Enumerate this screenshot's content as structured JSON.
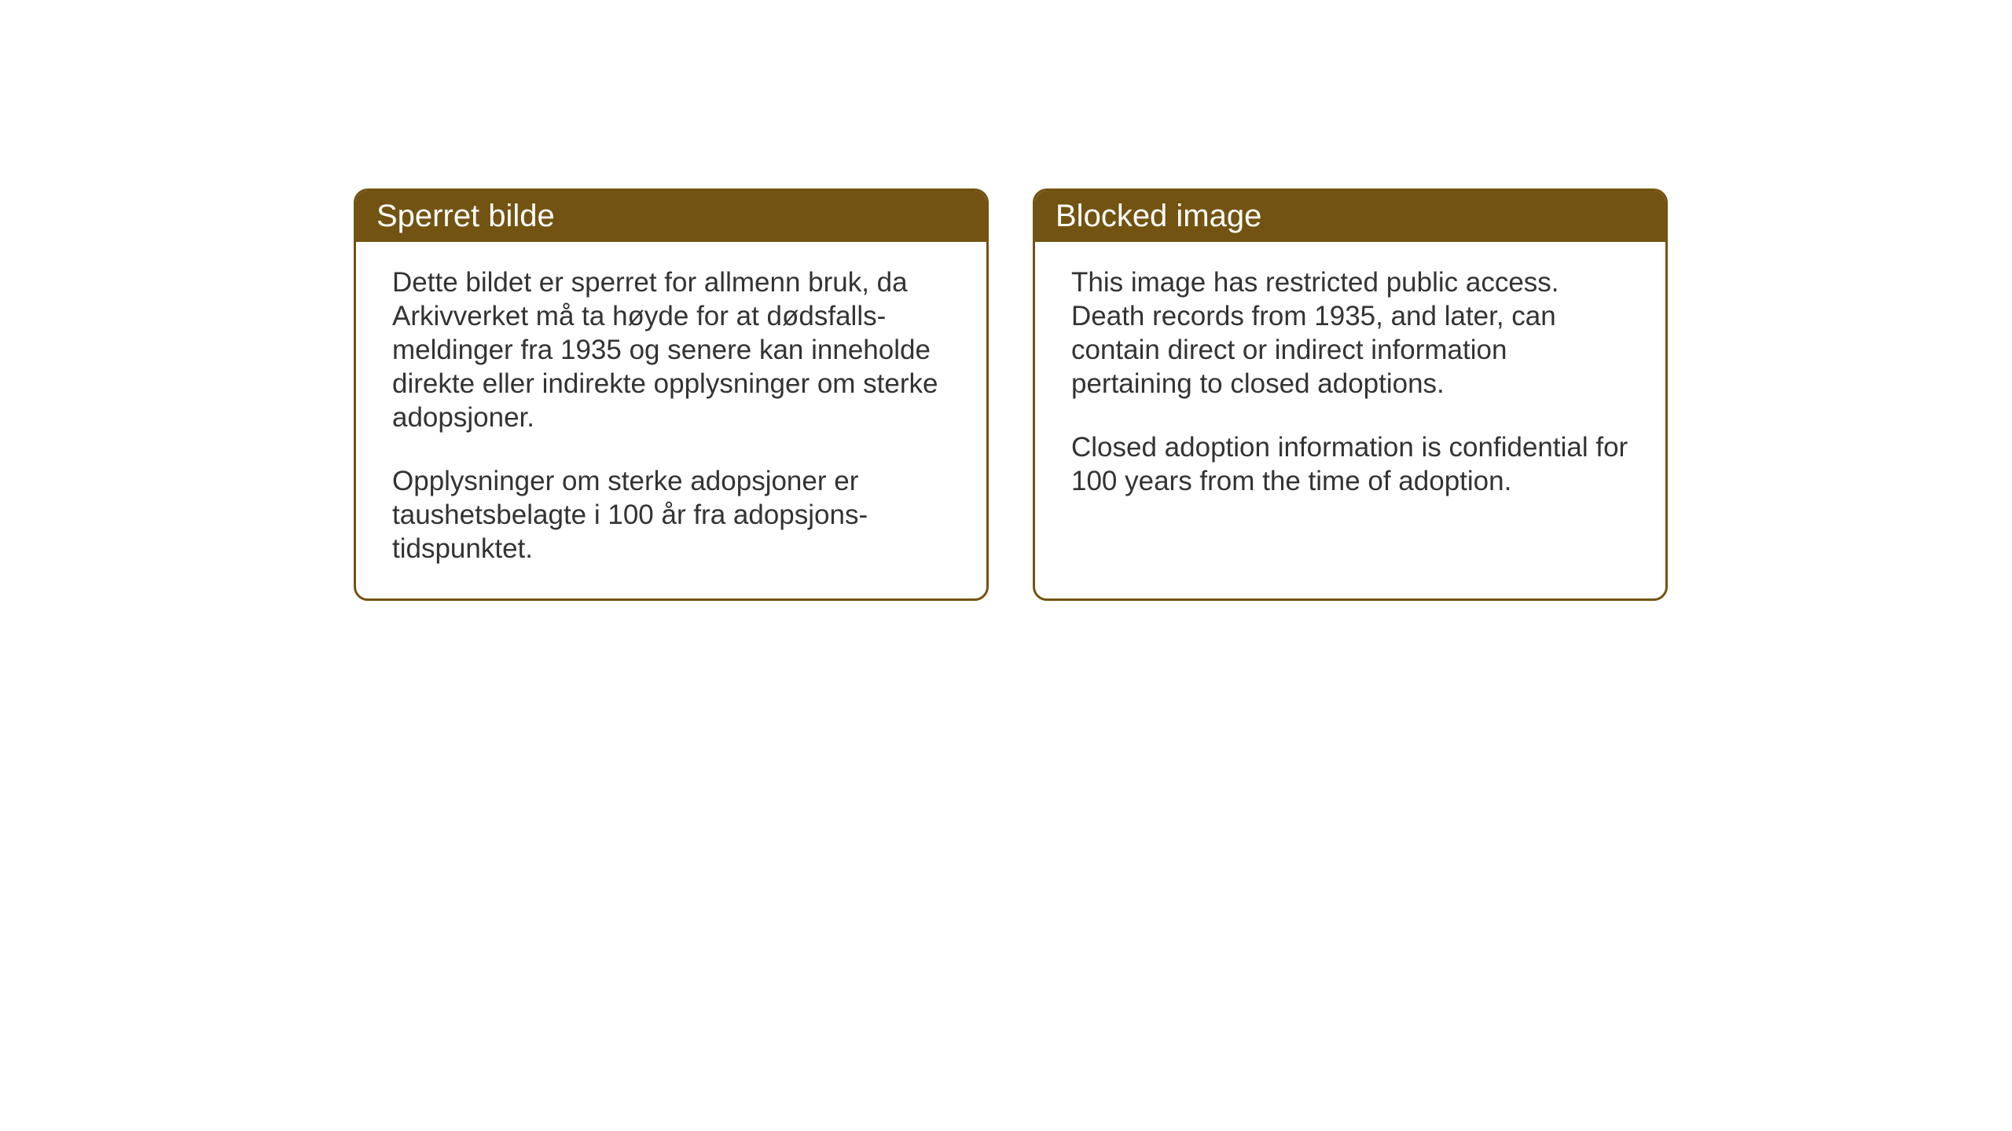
{
  "cards": {
    "left": {
      "title": "Sperret bilde",
      "paragraph1": "Dette bildet er sperret for allmenn bruk, da Arkivverket må ta høyde for at dødsfalls-meldinger fra 1935 og senere kan inneholde direkte eller indirekte opplysninger om sterke adopsjoner.",
      "paragraph2": "Opplysninger om sterke adopsjoner er taushetsbelagte i 100 år fra adopsjons-tidspunktet."
    },
    "right": {
      "title": "Blocked image",
      "paragraph1": "This image has restricted public access. Death records from 1935, and later, can contain direct or indirect information pertaining to closed adoptions.",
      "paragraph2": "Closed adoption information is confidential for 100 years from the time of adoption."
    }
  },
  "styling": {
    "header_bg_color": "#735312",
    "header_text_color": "#ffffff",
    "border_color": "#735312",
    "body_text_color": "#333333",
    "page_bg_color": "#ffffff",
    "border_radius": 18,
    "border_width": 3,
    "header_font_size": 40,
    "body_font_size": 35
  }
}
